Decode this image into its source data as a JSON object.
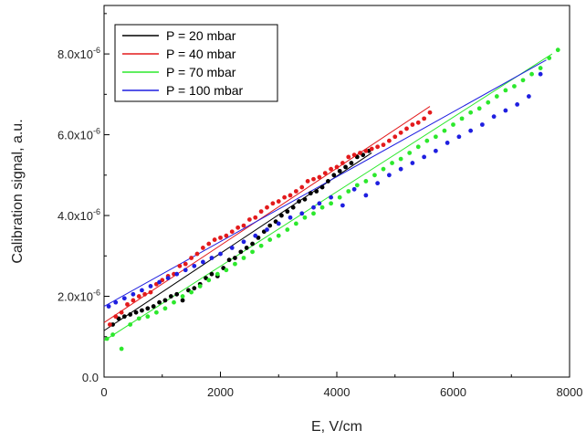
{
  "chart_data": {
    "type": "scatter",
    "xlabel": "E, V/cm",
    "ylabel": "Calibration signal, a.u.",
    "xlim": [
      0,
      8000
    ],
    "ylim": [
      0,
      9.2e-06
    ],
    "x_ticks": [
      0,
      2000,
      4000,
      6000,
      8000
    ],
    "x_tick_labels": [
      "0",
      "2000",
      "4000",
      "6000",
      "8000"
    ],
    "y_ticks": [
      0,
      2e-06,
      4e-06,
      6e-06,
      8e-06
    ],
    "y_tick_labels": [
      {
        "mantissa": "0.0",
        "exp": ""
      },
      {
        "mantissa": "2.0x10",
        "exp": "-6"
      },
      {
        "mantissa": "4.0x10",
        "exp": "-6"
      },
      {
        "mantissa": "6.0x10",
        "exp": "-6"
      },
      {
        "mantissa": "8.0x10",
        "exp": "-6"
      }
    ],
    "grid": false,
    "legend_position": "top-left",
    "series": [
      {
        "name": "P = 20 mbar",
        "color": "#000000",
        "fit": {
          "x": [
            0,
            4600
          ],
          "y": [
            1.15e-06,
            5.55e-06
          ]
        },
        "x": [
          150,
          250,
          350,
          450,
          550,
          650,
          750,
          850,
          950,
          1050,
          1150,
          1250,
          1350,
          1450,
          1550,
          1650,
          1750,
          1850,
          1950,
          2050,
          2150,
          2250,
          2350,
          2450,
          2550,
          2650,
          2750,
          2850,
          2950,
          3050,
          3150,
          3250,
          3350,
          3450,
          3550,
          3650,
          3750,
          3850,
          3950,
          4050,
          4150,
          4250,
          4350,
          4450,
          4550
        ],
        "y": [
          1.3e-06,
          1.45e-06,
          1.5e-06,
          1.55e-06,
          1.6e-06,
          1.65e-06,
          1.7e-06,
          1.75e-06,
          1.85e-06,
          1.9e-06,
          2e-06,
          2.05e-06,
          1.9e-06,
          2.15e-06,
          2.2e-06,
          2.3e-06,
          2.45e-06,
          2.55e-06,
          2.5e-06,
          2.7e-06,
          2.9e-06,
          2.95e-06,
          3.1e-06,
          3.2e-06,
          3.3e-06,
          3.45e-06,
          3.6e-06,
          3.75e-06,
          3.85e-06,
          4e-06,
          4.1e-06,
          4.2e-06,
          4.35e-06,
          4.4e-06,
          4.55e-06,
          4.6e-06,
          4.7e-06,
          4.85e-06,
          5e-06,
          5.1e-06,
          5.2e-06,
          5.3e-06,
          5.45e-06,
          5.5e-06,
          5.6e-06
        ]
      },
      {
        "name": "P = 40 mbar",
        "color": "#e31a1c",
        "fit": {
          "x": [
            0,
            5600
          ],
          "y": [
            1.35e-06,
            6.7e-06
          ]
        },
        "x": [
          100,
          200,
          300,
          400,
          500,
          600,
          700,
          800,
          900,
          1000,
          1100,
          1200,
          1300,
          1400,
          1500,
          1600,
          1700,
          1800,
          1900,
          2000,
          2100,
          2200,
          2300,
          2400,
          2500,
          2600,
          2700,
          2800,
          2900,
          3000,
          3100,
          3200,
          3300,
          3400,
          3500,
          3600,
          3700,
          3800,
          3900,
          4000,
          4100,
          4200,
          4300,
          4400,
          4500,
          4600,
          4700,
          4800,
          4900,
          5000,
          5100,
          5200,
          5300,
          5400,
          5500,
          5600
        ],
        "y": [
          1.3e-06,
          1.5e-06,
          1.6e-06,
          1.8e-06,
          1.9e-06,
          2e-06,
          2.05e-06,
          2.1e-06,
          2.3e-06,
          2.4e-06,
          2.5e-06,
          2.55e-06,
          2.75e-06,
          2.8e-06,
          2.95e-06,
          3.05e-06,
          3.2e-06,
          3.3e-06,
          3.4e-06,
          3.45e-06,
          3.5e-06,
          3.6e-06,
          3.7e-06,
          3.75e-06,
          3.9e-06,
          3.95e-06,
          4.1e-06,
          4.2e-06,
          4.3e-06,
          4.35e-06,
          4.45e-06,
          4.5e-06,
          4.6e-06,
          4.7e-06,
          4.85e-06,
          4.9e-06,
          4.95e-06,
          5.05e-06,
          5.15e-06,
          5.2e-06,
          5.3e-06,
          5.45e-06,
          5.5e-06,
          5.55e-06,
          5.6e-06,
          5.65e-06,
          5.7e-06,
          5.75e-06,
          5.85e-06,
          5.95e-06,
          6.05e-06,
          6.15e-06,
          6.25e-06,
          6.3e-06,
          6.4e-06,
          6.55e-06
        ]
      },
      {
        "name": "P = 70 mbar",
        "color": "#2ce82c",
        "fit": {
          "x": [
            0,
            7700
          ],
          "y": [
            9e-07,
            8e-06
          ]
        },
        "x": [
          50,
          150,
          300,
          450,
          600,
          750,
          900,
          1050,
          1200,
          1350,
          1500,
          1650,
          1800,
          1950,
          2100,
          2250,
          2400,
          2550,
          2700,
          2850,
          3000,
          3150,
          3300,
          3450,
          3600,
          3750,
          3900,
          4050,
          4200,
          4350,
          4500,
          4650,
          4800,
          4950,
          5100,
          5250,
          5400,
          5550,
          5700,
          5850,
          6000,
          6150,
          6300,
          6450,
          6600,
          6750,
          6900,
          7050,
          7200,
          7350,
          7500,
          7650,
          7800
        ],
        "y": [
          9.5e-07,
          1.05e-06,
          7e-07,
          1.3e-06,
          1.45e-06,
          1.5e-06,
          1.6e-06,
          1.7e-06,
          1.85e-06,
          2e-06,
          2.1e-06,
          2.25e-06,
          2.4e-06,
          2.55e-06,
          2.65e-06,
          2.8e-06,
          2.95e-06,
          3.1e-06,
          3.25e-06,
          3.4e-06,
          3.5e-06,
          3.65e-06,
          3.8e-06,
          3.95e-06,
          4.05e-06,
          4.2e-06,
          4.3e-06,
          4.45e-06,
          4.6e-06,
          4.75e-06,
          4.85e-06,
          5e-06,
          5.15e-06,
          5.3e-06,
          5.4e-06,
          5.55e-06,
          5.7e-06,
          5.85e-06,
          5.95e-06,
          6.1e-06,
          6.25e-06,
          6.4e-06,
          6.55e-06,
          6.65e-06,
          6.8e-06,
          6.95e-06,
          7.1e-06,
          7.2e-06,
          7.35e-06,
          7.5e-06,
          7.65e-06,
          7.9e-06,
          8.1e-06
        ]
      },
      {
        "name": "P = 100 mbar",
        "color": "#1f1fe0",
        "fit": {
          "x": [
            0,
            7600
          ],
          "y": [
            1.75e-06,
            7.85e-06
          ]
        },
        "x": [
          80,
          200,
          350,
          500,
          650,
          800,
          950,
          1100,
          1250,
          1400,
          1550,
          1700,
          1850,
          2000,
          2200,
          2400,
          2600,
          2800,
          3000,
          3200,
          3400,
          3600,
          3700,
          3900,
          4100,
          4300,
          4500,
          4700,
          4900,
          5100,
          5300,
          5500,
          5700,
          5900,
          6100,
          6300,
          6500,
          6700,
          6900,
          7100,
          7300,
          7500
        ],
        "y": [
          1.75e-06,
          1.85e-06,
          1.95e-06,
          2.05e-06,
          2.15e-06,
          2.25e-06,
          2.35e-06,
          2.45e-06,
          2.55e-06,
          2.65e-06,
          2.75e-06,
          2.85e-06,
          2.95e-06,
          3.05e-06,
          3.2e-06,
          3.35e-06,
          3.5e-06,
          3.65e-06,
          3.8e-06,
          3.95e-06,
          4.05e-06,
          4.2e-06,
          4.3e-06,
          4.45e-06,
          4.25e-06,
          4.65e-06,
          4.5e-06,
          4.8e-06,
          5e-06,
          5.15e-06,
          5.3e-06,
          5.45e-06,
          5.6e-06,
          5.8e-06,
          5.95e-06,
          6.1e-06,
          6.25e-06,
          6.45e-06,
          6.6e-06,
          6.75e-06,
          6.95e-06,
          7.5e-06
        ]
      }
    ]
  }
}
